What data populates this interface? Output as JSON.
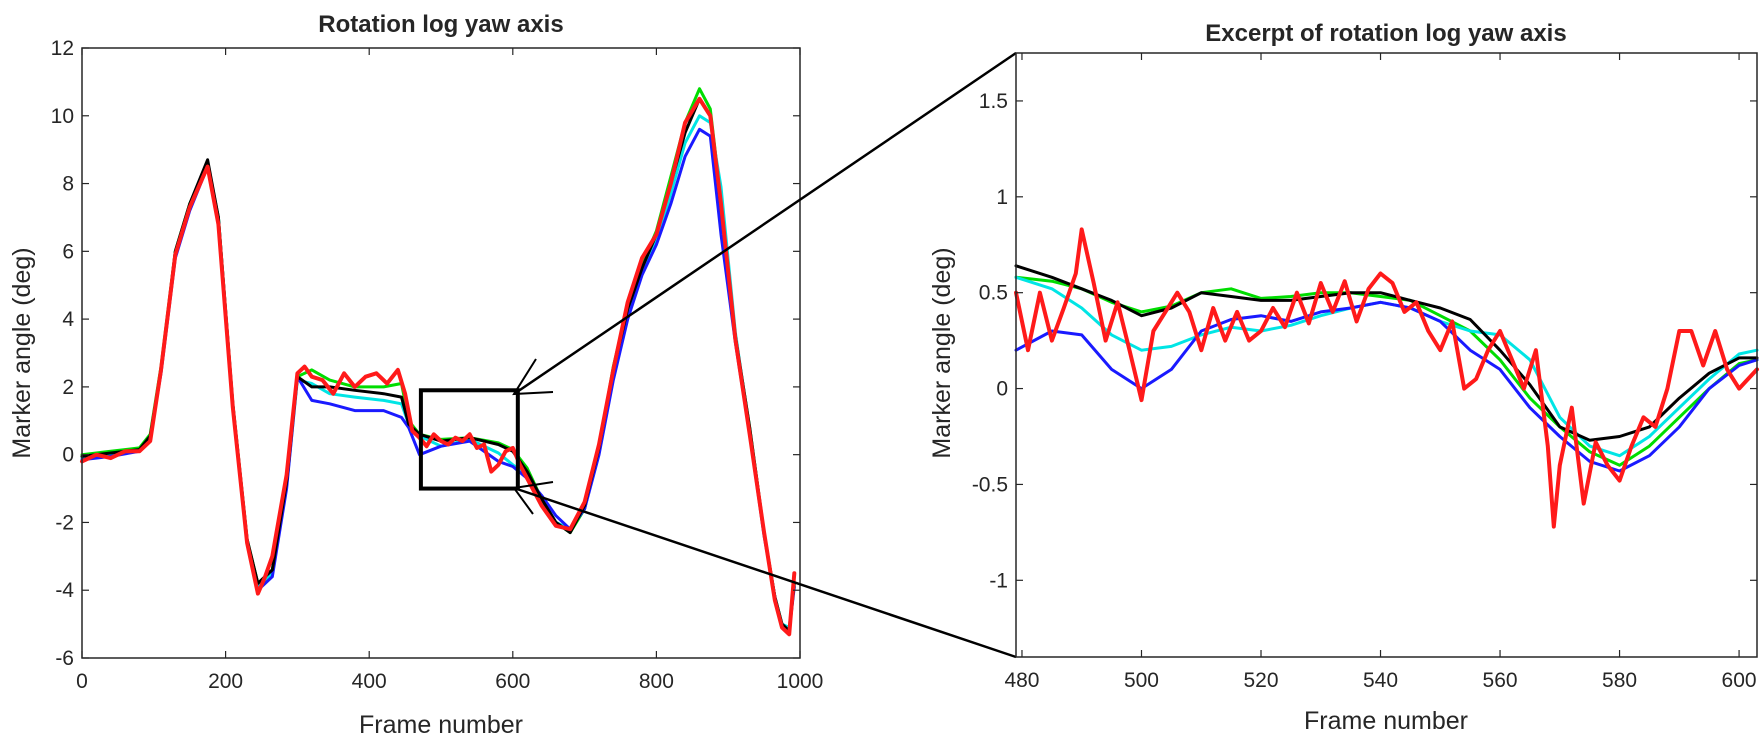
{
  "chart_data": [
    {
      "type": "line",
      "title": "Rotation log yaw axis",
      "xlabel": "Frame number",
      "ylabel": "Marker angle (deg)",
      "xlim": [
        0,
        1000
      ],
      "ylim": [
        -6,
        12
      ],
      "xticks": [
        "0",
        "200",
        "400",
        "600",
        "800",
        "1000"
      ],
      "yticks": [
        "-6",
        "-4",
        "-2",
        "0",
        "2",
        "4",
        "6",
        "8",
        "10",
        "12"
      ],
      "grid": false,
      "legend": "none",
      "zoom_box": {
        "x": [
          472,
          607
        ],
        "y": [
          -1,
          1.9
        ]
      },
      "series": [
        {
          "color": "#00dd00",
          "x": [
            0,
            40,
            80,
            95,
            110,
            130,
            150,
            175,
            190,
            210,
            230,
            245,
            265,
            285,
            300,
            320,
            345,
            380,
            420,
            445,
            455,
            470,
            500,
            540,
            580,
            600,
            620,
            640,
            660,
            680,
            700,
            720,
            740,
            760,
            780,
            800,
            820,
            840,
            860,
            875,
            890,
            910,
            930,
            950,
            965,
            975,
            985,
            992
          ],
          "y": [
            0,
            0.1,
            0.2,
            0.6,
            2.6,
            6.0,
            7.4,
            8.6,
            7.0,
            1.5,
            -2.5,
            -3.8,
            -3.4,
            -0.8,
            2.3,
            2.5,
            2.2,
            2.0,
            2.0,
            2.1,
            1.0,
            0.6,
            0.45,
            0.5,
            0.35,
            0.15,
            -0.4,
            -1.3,
            -2.0,
            -2.3,
            -1.6,
            0.2,
            2.6,
            4.4,
            5.6,
            6.6,
            8.2,
            9.8,
            10.8,
            10.2,
            7.5,
            3.5,
            0.8,
            -2.3,
            -4.2,
            -5.0,
            -5.2,
            -3.8
          ]
        },
        {
          "color": "#00e5e5",
          "x": [
            0,
            40,
            80,
            95,
            110,
            130,
            150,
            175,
            190,
            210,
            230,
            245,
            265,
            285,
            300,
            320,
            345,
            380,
            420,
            445,
            455,
            470,
            500,
            540,
            580,
            600,
            620,
            640,
            660,
            680,
            700,
            720,
            740,
            760,
            780,
            800,
            820,
            840,
            860,
            875,
            890,
            910,
            930,
            950,
            965,
            975,
            985,
            992
          ],
          "y": [
            -0.1,
            0.0,
            0.1,
            0.5,
            2.5,
            5.9,
            7.3,
            8.5,
            7.0,
            1.5,
            -2.5,
            -3.9,
            -3.5,
            -0.9,
            2.2,
            2.1,
            1.8,
            1.7,
            1.6,
            1.5,
            0.9,
            0.55,
            0.25,
            0.45,
            0.05,
            -0.3,
            -0.6,
            -1.3,
            -2.0,
            -2.2,
            -1.5,
            0.1,
            2.4,
            4.2,
            5.4,
            6.3,
            7.7,
            9.2,
            10.0,
            9.8,
            7.9,
            3.6,
            0.7,
            -2.3,
            -4.2,
            -5.0,
            -5.1,
            -3.8
          ]
        },
        {
          "color": "#1a1aff",
          "x": [
            0,
            40,
            80,
            95,
            110,
            130,
            150,
            175,
            190,
            210,
            230,
            245,
            265,
            285,
            300,
            320,
            345,
            380,
            420,
            445,
            455,
            470,
            500,
            540,
            580,
            600,
            620,
            640,
            660,
            680,
            700,
            720,
            740,
            760,
            780,
            800,
            820,
            840,
            860,
            875,
            890,
            910,
            930,
            950,
            965,
            975,
            985,
            992
          ],
          "y": [
            -0.15,
            -0.05,
            0.1,
            0.5,
            2.4,
            5.8,
            7.2,
            8.5,
            6.9,
            1.4,
            -2.6,
            -4.0,
            -3.6,
            -1.0,
            2.3,
            1.6,
            1.5,
            1.3,
            1.3,
            1.1,
            0.8,
            0.0,
            0.25,
            0.4,
            -0.2,
            -0.35,
            -0.7,
            -1.2,
            -1.8,
            -2.2,
            -1.6,
            0.0,
            2.2,
            4.0,
            5.3,
            6.2,
            7.4,
            8.8,
            9.6,
            9.4,
            6.5,
            3.3,
            0.6,
            -2.4,
            -4.2,
            -5.1,
            -5.2,
            -3.9
          ]
        },
        {
          "color": "#000000",
          "x": [
            0,
            40,
            80,
            95,
            110,
            130,
            150,
            175,
            190,
            210,
            230,
            245,
            265,
            285,
            300,
            320,
            345,
            380,
            420,
            445,
            455,
            470,
            500,
            540,
            580,
            600,
            620,
            640,
            660,
            680,
            700,
            720,
            740,
            760,
            780,
            800,
            820,
            840,
            860,
            875,
            890,
            910,
            930,
            950,
            965,
            975,
            985,
            992
          ],
          "y": [
            -0.05,
            0.05,
            0.15,
            0.55,
            2.5,
            6.0,
            7.4,
            8.7,
            7.0,
            1.5,
            -2.5,
            -3.8,
            -3.4,
            -0.8,
            2.3,
            2.0,
            2.0,
            1.9,
            1.8,
            1.7,
            0.9,
            0.6,
            0.4,
            0.5,
            0.3,
            0.1,
            -0.5,
            -1.3,
            -2.0,
            -2.3,
            -1.5,
            0.2,
            2.5,
            4.3,
            5.5,
            6.5,
            8.0,
            9.5,
            10.5,
            10.0,
            7.3,
            3.5,
            0.8,
            -2.3,
            -4.2,
            -5.0,
            -5.2,
            -3.8
          ]
        },
        {
          "color": "#ff1a1a",
          "x": [
            0,
            20,
            40,
            60,
            80,
            95,
            110,
            130,
            150,
            175,
            190,
            210,
            230,
            245,
            255,
            265,
            285,
            300,
            310,
            320,
            335,
            350,
            365,
            380,
            395,
            410,
            425,
            440,
            450,
            460,
            470,
            480,
            490,
            500,
            510,
            520,
            530,
            540,
            550,
            560,
            570,
            580,
            590,
            600,
            610,
            620,
            640,
            660,
            680,
            700,
            720,
            740,
            760,
            780,
            800,
            820,
            840,
            860,
            875,
            890,
            910,
            930,
            950,
            965,
            975,
            985,
            992
          ],
          "y": [
            -0.2,
            0.0,
            -0.1,
            0.1,
            0.1,
            0.4,
            2.5,
            5.9,
            7.3,
            8.5,
            6.8,
            1.4,
            -2.6,
            -4.1,
            -3.6,
            -3.0,
            -0.6,
            2.4,
            2.6,
            2.3,
            2.2,
            1.8,
            2.4,
            2.0,
            2.3,
            2.4,
            2.1,
            2.5,
            1.8,
            0.7,
            0.5,
            0.25,
            0.6,
            0.4,
            0.3,
            0.5,
            0.4,
            0.6,
            0.2,
            0.3,
            -0.5,
            -0.3,
            0.1,
            0.2,
            -0.3,
            -0.7,
            -1.5,
            -2.1,
            -2.2,
            -1.4,
            0.3,
            2.5,
            4.5,
            5.8,
            6.5,
            8.0,
            9.8,
            10.5,
            10.0,
            7.4,
            3.4,
            0.6,
            -2.3,
            -4.3,
            -5.1,
            -5.3,
            -3.5
          ]
        }
      ]
    },
    {
      "type": "line",
      "title": "Excerpt of rotation log yaw axis",
      "xlabel": "Frame number",
      "ylabel": "Marker angle (deg)",
      "xlim": [
        479,
        603
      ],
      "ylim": [
        -1.4,
        1.75
      ],
      "xticks": [
        "480",
        "500",
        "520",
        "540",
        "560",
        "580",
        "600"
      ],
      "yticks": [
        "-1",
        "-0.5",
        "0",
        "0.5",
        "1",
        "1.5"
      ],
      "grid": false,
      "legend": "none",
      "series": [
        {
          "color": "#00dd00",
          "x": [
            479,
            485,
            490,
            495,
            500,
            505,
            510,
            515,
            520,
            525,
            530,
            535,
            540,
            545,
            550,
            555,
            560,
            565,
            570,
            575,
            580,
            585,
            590,
            595,
            600,
            603
          ],
          "y": [
            0.58,
            0.56,
            0.52,
            0.45,
            0.4,
            0.43,
            0.5,
            0.52,
            0.47,
            0.48,
            0.5,
            0.5,
            0.48,
            0.46,
            0.38,
            0.3,
            0.15,
            -0.05,
            -0.2,
            -0.33,
            -0.4,
            -0.3,
            -0.15,
            0.0,
            0.13,
            0.15
          ]
        },
        {
          "color": "#00e5e5",
          "x": [
            479,
            485,
            490,
            495,
            500,
            505,
            510,
            515,
            520,
            525,
            530,
            535,
            540,
            545,
            550,
            555,
            560,
            565,
            570,
            575,
            580,
            585,
            590,
            595,
            600,
            603
          ],
          "y": [
            0.58,
            0.52,
            0.42,
            0.28,
            0.2,
            0.22,
            0.28,
            0.32,
            0.3,
            0.33,
            0.38,
            0.42,
            0.45,
            0.42,
            0.35,
            0.3,
            0.28,
            0.15,
            -0.15,
            -0.3,
            -0.35,
            -0.25,
            -0.1,
            0.05,
            0.18,
            0.2
          ]
        },
        {
          "color": "#1a1aff",
          "x": [
            479,
            485,
            490,
            495,
            500,
            505,
            510,
            515,
            520,
            525,
            530,
            535,
            540,
            545,
            550,
            555,
            560,
            565,
            570,
            575,
            580,
            585,
            590,
            595,
            600,
            603
          ],
          "y": [
            0.2,
            0.3,
            0.28,
            0.1,
            0.0,
            0.1,
            0.3,
            0.36,
            0.38,
            0.35,
            0.4,
            0.42,
            0.45,
            0.42,
            0.35,
            0.2,
            0.1,
            -0.1,
            -0.25,
            -0.38,
            -0.43,
            -0.35,
            -0.2,
            0.0,
            0.12,
            0.15
          ]
        },
        {
          "color": "#000000",
          "x": [
            479,
            485,
            490,
            495,
            500,
            505,
            510,
            515,
            520,
            525,
            530,
            535,
            540,
            545,
            550,
            555,
            560,
            565,
            570,
            575,
            580,
            585,
            590,
            595,
            600,
            603
          ],
          "y": [
            0.64,
            0.58,
            0.52,
            0.46,
            0.38,
            0.42,
            0.5,
            0.48,
            0.46,
            0.46,
            0.48,
            0.5,
            0.5,
            0.46,
            0.42,
            0.36,
            0.2,
            0.02,
            -0.2,
            -0.27,
            -0.25,
            -0.2,
            -0.05,
            0.08,
            0.16,
            0.16
          ]
        },
        {
          "color": "#ff1a1a",
          "x": [
            479,
            481,
            483,
            485,
            487,
            489,
            490,
            492,
            494,
            496,
            498,
            500,
            502,
            504,
            506,
            508,
            510,
            512,
            514,
            516,
            518,
            520,
            522,
            524,
            526,
            528,
            530,
            532,
            534,
            536,
            538,
            540,
            542,
            544,
            546,
            548,
            550,
            552,
            554,
            556,
            558,
            560,
            562,
            564,
            566,
            568,
            569,
            570,
            572,
            574,
            576,
            578,
            580,
            582,
            584,
            586,
            588,
            590,
            592,
            594,
            596,
            598,
            600,
            603
          ],
          "y": [
            0.5,
            0.2,
            0.5,
            0.25,
            0.42,
            0.6,
            0.83,
            0.55,
            0.25,
            0.45,
            0.2,
            -0.06,
            0.3,
            0.4,
            0.5,
            0.4,
            0.2,
            0.42,
            0.25,
            0.4,
            0.25,
            0.3,
            0.42,
            0.32,
            0.5,
            0.34,
            0.55,
            0.4,
            0.56,
            0.35,
            0.52,
            0.6,
            0.55,
            0.4,
            0.45,
            0.3,
            0.2,
            0.35,
            0.0,
            0.05,
            0.2,
            0.3,
            0.15,
            0.0,
            0.2,
            -0.3,
            -0.72,
            -0.4,
            -0.1,
            -0.6,
            -0.28,
            -0.4,
            -0.48,
            -0.3,
            -0.15,
            -0.2,
            0.0,
            0.3,
            0.3,
            0.12,
            0.3,
            0.1,
            0.0,
            0.1
          ]
        }
      ]
    }
  ]
}
